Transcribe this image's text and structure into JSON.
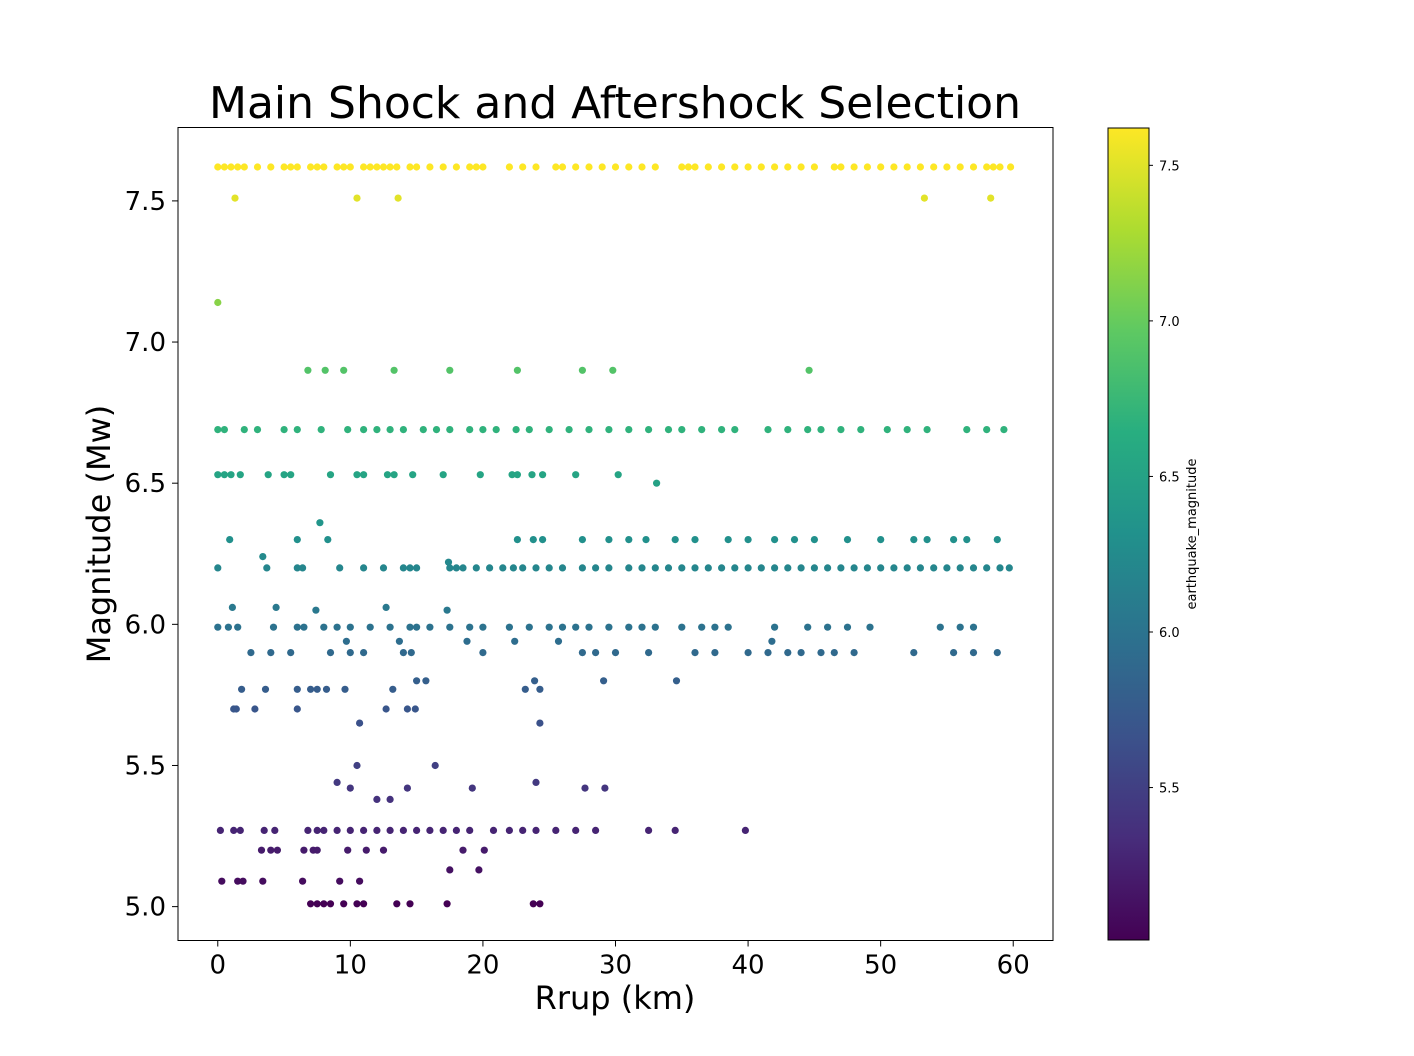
{
  "chart_data": {
    "type": "scatter",
    "title": "Main Shock and Aftershock Selection",
    "xlabel": "Rrup (km)",
    "ylabel": "Magnitude (Mw)",
    "xlim": [
      -3,
      63
    ],
    "ylim": [
      4.88,
      7.76
    ],
    "xticks": [
      0,
      10,
      20,
      30,
      40,
      50,
      60
    ],
    "yticks": [
      5.0,
      5.5,
      6.0,
      6.5,
      7.0,
      7.5
    ],
    "grid": false,
    "colormap": "viridis",
    "colorbar": {
      "label": "earthquake_magnitude",
      "range": [
        5.01,
        7.62
      ],
      "ticks": [
        5.5,
        6.0,
        6.5,
        7.0,
        7.5
      ]
    },
    "marker_color_by": "magnitude",
    "series": [
      {
        "magnitude": 7.62,
        "x": [
          0,
          0.5,
          1,
          1.5,
          2,
          3,
          4,
          5,
          5.5,
          6,
          7,
          7.5,
          8,
          9,
          9.5,
          10,
          11,
          11.5,
          12,
          12.5,
          13,
          13.5,
          14.5,
          15,
          16,
          17,
          18,
          19,
          19.5,
          20,
          22,
          23,
          24,
          25.5,
          26,
          27,
          28,
          29,
          30,
          31,
          32,
          33,
          35,
          35.5,
          36,
          37,
          38,
          39,
          40,
          41,
          42,
          43,
          44,
          45,
          46.5,
          47,
          48,
          49,
          50,
          51,
          52,
          53,
          54,
          55,
          56,
          57,
          58,
          58.5,
          59,
          59.8
        ]
      },
      {
        "magnitude": 7.51,
        "x": [
          1.3,
          10.5,
          13.6,
          53.3,
          58.3
        ]
      },
      {
        "magnitude": 7.14,
        "x": [
          0
        ]
      },
      {
        "magnitude": 6.9,
        "x": [
          6.8,
          8.1,
          9.5,
          13.3,
          17.5,
          22.6,
          27.5,
          29.8,
          44.6
        ]
      },
      {
        "magnitude": 6.69,
        "x": [
          0,
          0.5,
          2,
          3,
          5,
          6,
          7.8,
          9.8,
          11,
          12,
          13,
          14,
          15.5,
          16.5,
          17.5,
          19,
          20,
          21,
          22.5,
          23.5,
          25,
          26.5,
          28,
          29.5,
          31,
          32.5,
          34,
          35,
          36.5,
          38,
          39,
          41.5,
          43,
          44.5,
          45.5,
          47,
          48.5,
          50.5,
          52,
          53.5,
          56.5,
          58,
          59.3
        ]
      },
      {
        "magnitude": 6.53,
        "x": [
          0,
          0.5,
          1,
          1.7,
          3.8,
          5,
          5.5,
          8.5,
          10.5,
          11,
          12.8,
          13.3,
          14.7,
          17,
          19.8,
          22.2,
          22.6,
          23.7,
          24.5,
          27,
          30.2
        ]
      },
      {
        "magnitude": 6.5,
        "x": [
          33.1
        ]
      },
      {
        "magnitude": 6.36,
        "x": [
          7.7
        ]
      },
      {
        "magnitude": 6.3,
        "x": [
          0.9,
          6,
          8.3,
          22.6,
          23.8,
          24.5,
          27.5,
          29.5,
          31,
          32.3,
          34.5,
          36,
          38.5,
          40,
          42,
          43.5,
          45,
          47.5,
          50,
          52.5,
          53.5,
          55.5,
          56.5,
          58.8
        ]
      },
      {
        "magnitude": 6.24,
        "x": [
          3.4
        ]
      },
      {
        "magnitude": 6.22,
        "x": [
          17.4
        ]
      },
      {
        "magnitude": 6.2,
        "x": [
          0,
          3.7,
          6,
          6.4,
          9.2,
          11,
          12.5,
          14,
          14.5,
          15,
          17.5,
          18,
          18.5,
          19.5,
          20.5,
          21.5,
          22.3,
          23,
          24,
          25,
          26,
          27.5,
          28.5,
          29.5,
          31,
          32,
          33,
          34,
          35,
          36,
          37,
          38,
          39,
          40,
          41,
          42,
          43,
          44,
          45,
          46,
          47,
          48,
          49,
          50,
          51,
          52,
          53,
          54,
          55,
          56,
          57,
          58,
          59,
          59.7
        ]
      },
      {
        "magnitude": 6.06,
        "x": [
          1.1,
          4.4,
          12.7
        ]
      },
      {
        "magnitude": 6.05,
        "x": [
          7.4,
          17.3
        ]
      },
      {
        "magnitude": 5.99,
        "x": [
          0,
          0.8,
          1.5,
          4.2,
          6,
          6.5,
          8,
          9,
          10,
          11.5,
          13,
          14.5,
          15,
          16,
          17.5,
          19,
          20,
          22,
          23.5,
          25,
          26,
          27,
          28,
          29.5,
          31,
          32,
          33,
          35,
          36.5,
          37.5,
          38.5,
          42,
          44.5,
          46,
          47.5,
          49.2,
          54.5,
          56,
          57
        ]
      },
      {
        "magnitude": 5.94,
        "x": [
          9.7,
          13.7,
          18.8,
          22.4,
          25.7,
          41.8
        ]
      },
      {
        "magnitude": 5.9,
        "x": [
          2.5,
          4,
          5.5,
          8.5,
          10,
          11,
          14,
          14.6,
          20,
          27.5,
          28.5,
          30,
          32.5,
          36,
          37.5,
          40,
          41.5,
          43,
          44,
          45.5,
          46.5,
          48,
          52.5,
          55.5,
          57,
          58.8
        ]
      },
      {
        "magnitude": 5.8,
        "x": [
          15,
          15.7,
          23.9,
          29.1,
          34.6
        ]
      },
      {
        "magnitude": 5.77,
        "x": [
          1.8,
          3.6,
          6,
          7,
          7.5,
          8.2,
          9.6,
          13.2,
          23.2,
          24.3
        ]
      },
      {
        "magnitude": 5.7,
        "x": [
          1.2,
          1.4,
          2.8,
          6,
          12.7,
          14.3,
          14.9
        ]
      },
      {
        "magnitude": 5.65,
        "x": [
          10.7,
          24.3
        ]
      },
      {
        "magnitude": 5.5,
        "x": [
          10.5,
          16.4
        ]
      },
      {
        "magnitude": 5.44,
        "x": [
          9,
          24
        ]
      },
      {
        "magnitude": 5.42,
        "x": [
          10,
          14.3,
          19.2,
          27.7,
          29.2
        ]
      },
      {
        "magnitude": 5.38,
        "x": [
          12,
          13
        ]
      },
      {
        "magnitude": 5.27,
        "x": [
          0.2,
          1.2,
          1.7,
          3.5,
          4.3,
          6.8,
          7.5,
          8,
          9,
          10,
          11,
          12,
          13,
          14,
          15,
          16,
          17,
          18,
          19,
          20.8,
          22,
          23,
          24,
          25.5,
          27,
          28.5,
          32.5,
          34.5,
          39.8
        ]
      },
      {
        "magnitude": 5.2,
        "x": [
          3.3,
          4,
          4.5,
          6.5,
          7.2,
          7.5,
          9.8,
          11.2,
          12.5,
          18.5,
          20.1
        ]
      },
      {
        "magnitude": 5.13,
        "x": [
          17.5,
          19.7
        ]
      },
      {
        "magnitude": 5.09,
        "x": [
          0.3,
          1.5,
          1.9,
          3.4,
          6.4,
          9.2,
          10.7
        ]
      },
      {
        "magnitude": 5.01,
        "x": [
          7,
          7.5,
          8,
          8.5,
          9.5,
          10.5,
          11,
          13.5,
          14.5,
          17.3,
          23.8,
          24.3
        ]
      }
    ]
  }
}
